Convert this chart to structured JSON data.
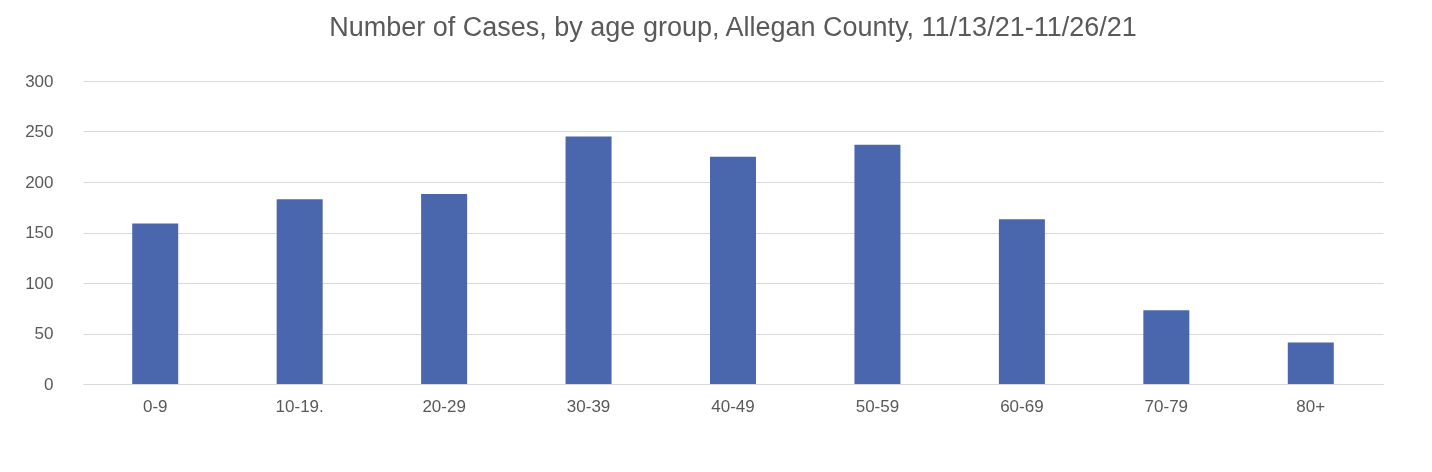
{
  "chart_data": {
    "type": "bar",
    "title": "Number of Cases, by age group, Allegan County, 11/13/21-11/26/21",
    "categories": [
      "0-9",
      "10-19.",
      "20-29",
      "30-39",
      "40-49",
      "50-59",
      "60-69",
      "70-79",
      "80+"
    ],
    "values": [
      159,
      183,
      188,
      245,
      225,
      237,
      163,
      73,
      41
    ],
    "color": "#4a66ac",
    "ylim": [
      0,
      300
    ],
    "yticks": [
      0,
      50,
      100,
      150,
      200,
      250,
      300
    ],
    "grid": "y"
  }
}
